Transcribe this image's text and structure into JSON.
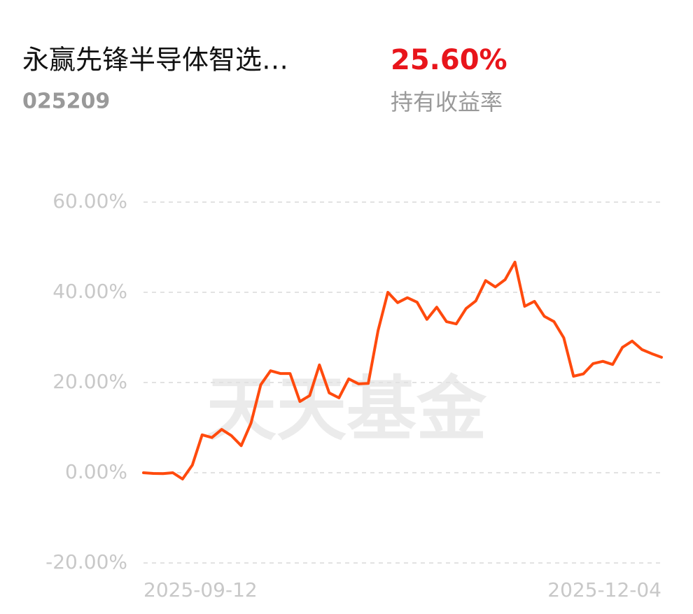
{
  "header": {
    "title": "永赢先锋半导体智选…",
    "code": "025209",
    "return": "25.60%",
    "return_label": "持有收益率",
    "watermark": "天天基金"
  },
  "chart_data": {
    "type": "line",
    "categories": [
      "2025-09-12",
      null,
      null,
      null,
      null,
      null,
      null,
      null,
      null,
      null,
      null,
      null,
      null,
      null,
      null,
      null,
      null,
      null,
      null,
      null,
      null,
      null,
      null,
      null,
      null,
      null,
      null,
      null,
      null,
      null,
      null,
      null,
      null,
      null,
      null,
      null,
      null,
      null,
      null,
      null,
      null,
      null,
      null,
      null,
      null,
      null,
      null,
      null,
      null,
      null,
      null,
      null,
      null,
      "2025-12-04"
    ],
    "series": [
      {
        "color": "#ff4a0d",
        "values": [
          0,
          -0.15,
          -0.2,
          0,
          -1.4,
          1.7,
          8.4,
          7.8,
          9.6,
          8.2,
          6.0,
          11.0,
          19.5,
          22.6,
          22.0,
          22.0,
          15.8,
          17.1,
          23.9,
          17.7,
          16.6,
          20.8,
          19.7,
          19.8,
          31.5,
          40.0,
          37.7,
          38.8,
          37.8,
          34.0,
          36.7,
          33.5,
          33.0,
          36.4,
          38.1,
          42.6,
          41.2,
          42.8,
          46.7,
          36.9,
          38.0,
          34.7,
          33.5,
          29.9,
          21.4,
          21.9,
          24.2,
          24.7,
          24.0,
          27.8,
          29.2,
          27.3,
          26.4,
          25.6
        ]
      }
    ],
    "ylim": [
      -20,
      60
    ],
    "yticks": [
      {
        "value": -20,
        "label": "-20.00%"
      },
      {
        "value": 0,
        "label": "0.00%"
      },
      {
        "value": 20,
        "label": "20.00%"
      },
      {
        "value": 40,
        "label": "40.00%"
      },
      {
        "value": 60,
        "label": "60.00%"
      }
    ],
    "grid": true
  }
}
